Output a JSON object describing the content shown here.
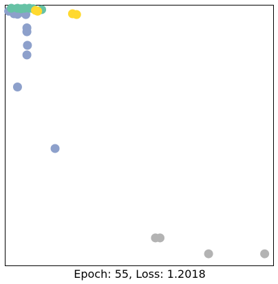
{
  "caption": "Epoch: 55, Loss: 1.2018",
  "colors": {
    "teal": "#66c2a5",
    "blue": "#8da0cb",
    "yellow": "#ffd92f",
    "gray": "#b3b3b3",
    "frame": "#000000",
    "background": "#ffffff"
  },
  "chart_data": {
    "type": "scatter",
    "title": "",
    "xlabel": "",
    "ylabel": "",
    "axes_ticks": false,
    "grid": false,
    "xlim": [
      0,
      100
    ],
    "ylim": [
      0,
      100
    ],
    "series": [
      {
        "color_key": "blue",
        "points": [
          [
            1.3,
            97.7
          ],
          [
            2.1,
            98.0
          ],
          [
            4.1,
            98.6
          ],
          [
            5.5,
            98.3
          ],
          [
            6.9,
            97.1
          ],
          [
            5.5,
            97.6
          ],
          [
            7.7,
            96.4
          ],
          [
            3.3,
            96.7
          ],
          [
            4.6,
            96.5
          ],
          [
            8.1,
            91.3
          ],
          [
            8.1,
            89.8
          ],
          [
            8.3,
            84.6
          ],
          [
            8.1,
            80.9
          ],
          [
            4.6,
            68.6
          ],
          [
            18.6,
            45.0
          ]
        ]
      },
      {
        "color_key": "teal",
        "points": [
          [
            2.3,
            98.8
          ],
          [
            4.6,
            98.8
          ],
          [
            5.9,
            98.6
          ],
          [
            7.2,
            98.8
          ],
          [
            9.0,
            98.8
          ],
          [
            10.5,
            98.6
          ],
          [
            13.6,
            98.3
          ]
        ]
      },
      {
        "color_key": "yellow",
        "points": [
          [
            11.3,
            98.0
          ],
          [
            12.1,
            97.7
          ],
          [
            25.1,
            96.7
          ],
          [
            26.6,
            96.4
          ]
        ]
      },
      {
        "color_key": "gray",
        "points": [
          [
            56.0,
            10.7
          ],
          [
            57.7,
            10.7
          ],
          [
            75.8,
            4.6
          ],
          [
            96.7,
            4.6
          ]
        ]
      }
    ]
  }
}
